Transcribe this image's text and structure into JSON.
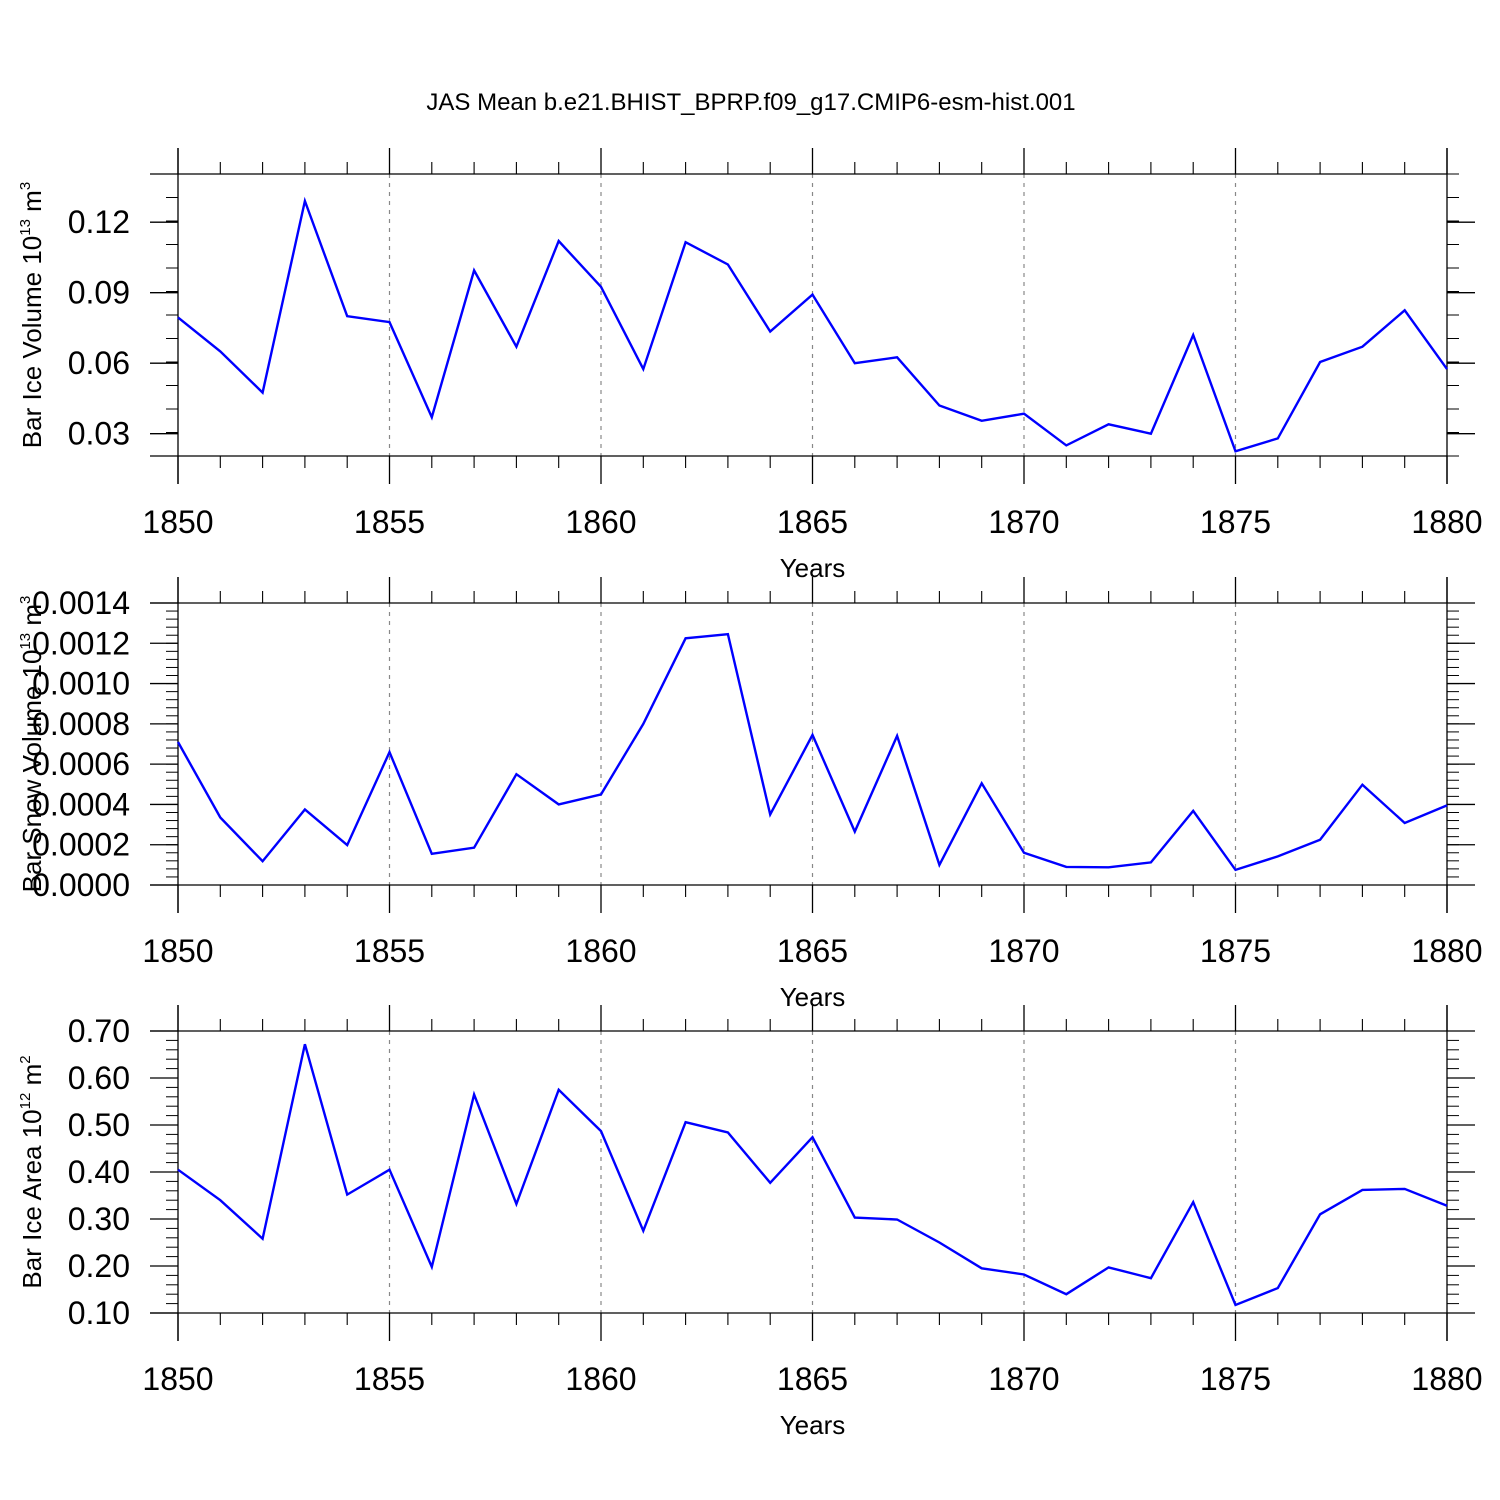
{
  "title": "JAS Mean b.e21.BHIST_BPRP.f09_g17.CMIP6-esm-hist.001",
  "colors": {
    "line": "#0000ff",
    "axis": "#000000",
    "grid": "#888888"
  },
  "chart_data": [
    {
      "type": "line",
      "name": "bar-ice-volume",
      "xlabel": "Years",
      "ylabel": {
        "base": "Bar Ice Volume 10",
        "exp1": "13",
        "mid": " m",
        "exp2": "3"
      },
      "xlim": [
        1850,
        1880
      ],
      "ylim": [
        0.0205,
        0.1405
      ],
      "x_ticks": [
        1850,
        1855,
        1860,
        1865,
        1870,
        1875,
        1880
      ],
      "x_tick_labels": [
        "1850",
        "1855",
        "1860",
        "1865",
        "1870",
        "1875",
        "1880"
      ],
      "y_ticks": [
        0.03,
        0.06,
        0.09,
        0.12
      ],
      "y_tick_labels": [
        "0.03",
        "0.06",
        "0.09",
        "0.12"
      ],
      "y_minor_step": 0.01,
      "x": [
        1850,
        1851,
        1852,
        1853,
        1854,
        1855,
        1856,
        1857,
        1858,
        1859,
        1860,
        1861,
        1862,
        1863,
        1864,
        1865,
        1866,
        1867,
        1868,
        1869,
        1870,
        1871,
        1872,
        1873,
        1874,
        1875,
        1876,
        1877,
        1878,
        1879,
        1880
      ],
      "values": [
        0.0795,
        0.065,
        0.0475,
        0.129,
        0.08,
        0.0775,
        0.037,
        0.0995,
        0.067,
        0.112,
        0.0925,
        0.0575,
        0.1115,
        0.102,
        0.0735,
        0.0892,
        0.06,
        0.0625,
        0.042,
        0.0355,
        0.0385,
        0.025,
        0.034,
        0.03,
        0.072,
        0.0225,
        0.028,
        0.0605,
        0.067,
        0.0825,
        0.0575
      ]
    },
    {
      "type": "line",
      "name": "bar-snow-volume",
      "xlabel": "Years",
      "ylabel": {
        "base": "Bar Snow Volume 10",
        "exp1": "13",
        "mid": " m",
        "exp2": "3"
      },
      "xlim": [
        1850,
        1880
      ],
      "ylim": [
        0.0,
        0.0014
      ],
      "x_ticks": [
        1850,
        1855,
        1860,
        1865,
        1870,
        1875,
        1880
      ],
      "x_tick_labels": [
        "1850",
        "1855",
        "1860",
        "1865",
        "1870",
        "1875",
        "1880"
      ],
      "y_ticks": [
        0.0,
        0.0002,
        0.0004,
        0.0006,
        0.0008,
        0.001,
        0.0012,
        0.0014
      ],
      "y_tick_labels": [
        "0.0000",
        "0.0002",
        "0.0004",
        "0.0006",
        "0.0008",
        "0.0010",
        "0.0012",
        "0.0014"
      ],
      "y_minor_step": 4e-05,
      "x": [
        1850,
        1851,
        1852,
        1853,
        1854,
        1855,
        1856,
        1857,
        1858,
        1859,
        1860,
        1861,
        1862,
        1863,
        1864,
        1865,
        1866,
        1867,
        1868,
        1869,
        1870,
        1871,
        1872,
        1873,
        1874,
        1875,
        1876,
        1877,
        1878,
        1879,
        1880
      ],
      "values": [
        0.00071,
        0.000335,
        0.000118,
        0.000375,
        0.000198,
        0.00066,
        0.000155,
        0.000185,
        0.00055,
        0.0004,
        0.00045,
        0.0008,
        0.001225,
        0.001245,
        0.00035,
        0.000745,
        0.000265,
        0.00074,
        0.0001,
        0.000505,
        0.00016,
        9e-05,
        8.8e-05,
        0.000112,
        0.000368,
        7.5e-05,
        0.000142,
        0.000225,
        0.000498,
        0.000308,
        0.000395
      ]
    },
    {
      "type": "line",
      "name": "bar-ice-area",
      "xlabel": "Years",
      "ylabel": {
        "base": "Bar Ice Area 10",
        "exp1": "12",
        "mid": " m",
        "exp2": "2"
      },
      "xlim": [
        1850,
        1880
      ],
      "ylim": [
        0.1,
        0.7
      ],
      "x_ticks": [
        1850,
        1855,
        1860,
        1865,
        1870,
        1875,
        1880
      ],
      "x_tick_labels": [
        "1850",
        "1855",
        "1860",
        "1865",
        "1870",
        "1875",
        "1880"
      ],
      "y_ticks": [
        0.1,
        0.2,
        0.3,
        0.4,
        0.5,
        0.6,
        0.7
      ],
      "y_tick_labels": [
        "0.10",
        "0.20",
        "0.30",
        "0.40",
        "0.50",
        "0.60",
        "0.70"
      ],
      "y_minor_step": 0.02,
      "x": [
        1850,
        1851,
        1852,
        1853,
        1854,
        1855,
        1856,
        1857,
        1858,
        1859,
        1860,
        1861,
        1862,
        1863,
        1864,
        1865,
        1866,
        1867,
        1868,
        1869,
        1870,
        1871,
        1872,
        1873,
        1874,
        1875,
        1876,
        1877,
        1878,
        1879,
        1880
      ],
      "values": [
        0.405,
        0.34,
        0.258,
        0.672,
        0.352,
        0.405,
        0.198,
        0.565,
        0.332,
        0.575,
        0.487,
        0.275,
        0.506,
        0.484,
        0.377,
        0.474,
        0.303,
        0.299,
        0.25,
        0.195,
        0.182,
        0.14,
        0.197,
        0.174,
        0.336,
        0.117,
        0.153,
        0.31,
        0.362,
        0.364,
        0.328
      ]
    }
  ]
}
